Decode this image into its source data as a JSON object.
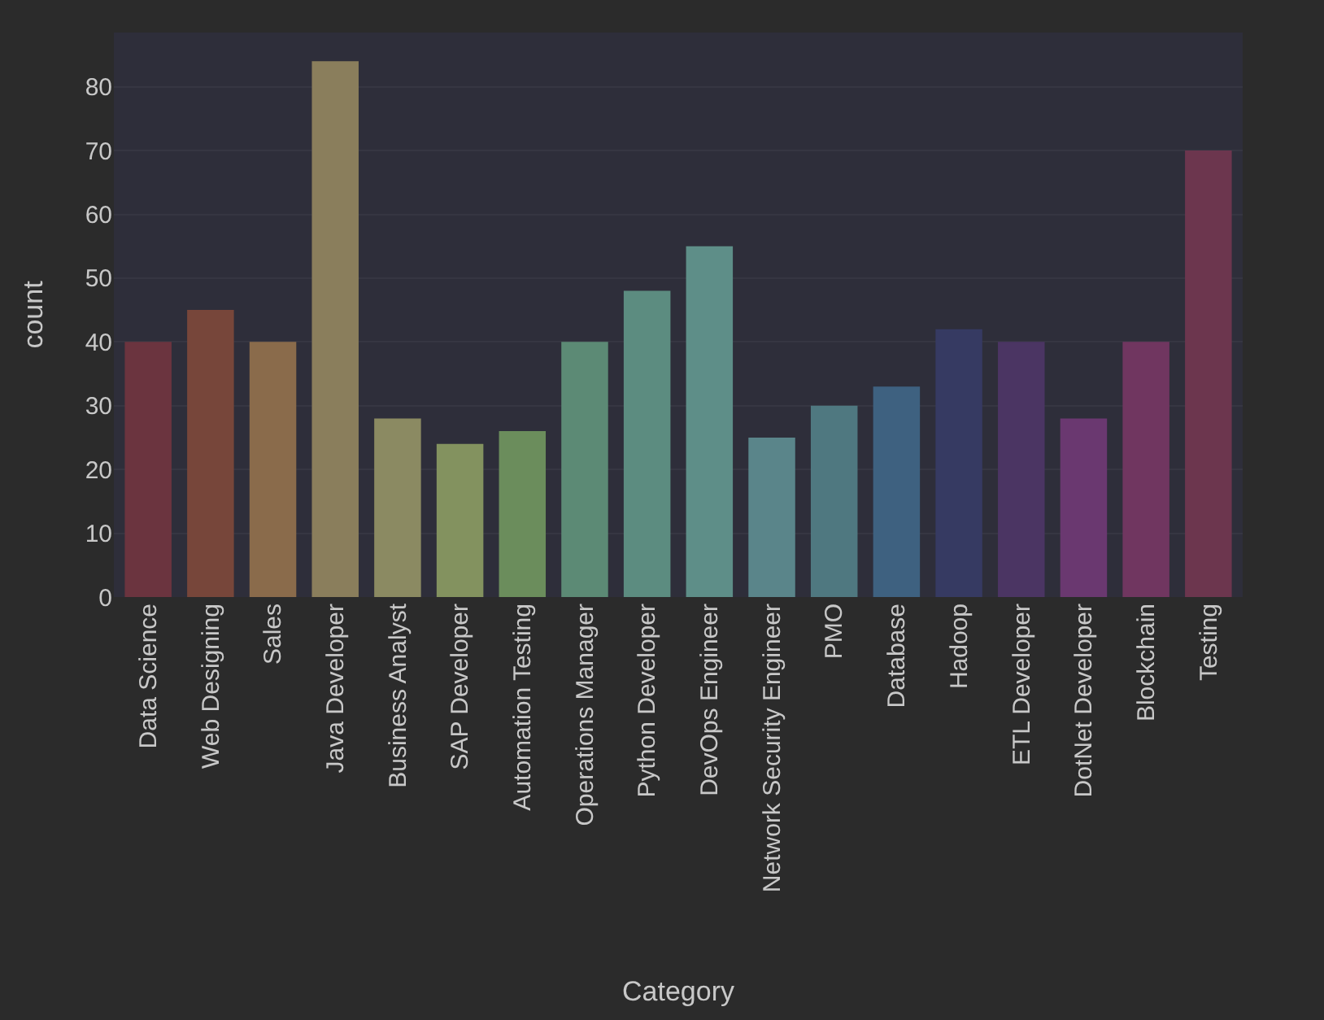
{
  "chart_data": {
    "type": "bar",
    "xlabel": "Category",
    "ylabel": "count",
    "categories": [
      "Data Science",
      "Web Designing",
      "Sales",
      "Java Developer",
      "Business Analyst",
      "SAP Developer",
      "Automation Testing",
      "Operations Manager",
      "Python Developer",
      "DevOps Engineer",
      "Network Security Engineer",
      "PMO",
      "Database",
      "Hadoop",
      "ETL Developer",
      "DotNet Developer",
      "Blockchain",
      "Testing"
    ],
    "values": [
      40,
      45,
      40,
      84,
      28,
      24,
      26,
      40,
      48,
      55,
      25,
      30,
      33,
      42,
      40,
      28,
      40,
      70
    ],
    "colors": [
      "#6b343f",
      "#77463a",
      "#8a6b4b",
      "#8a7e5c",
      "#8b8a62",
      "#83925f",
      "#6b8d5c",
      "#5c8a75",
      "#5c8c80",
      "#5e8e88",
      "#5a858a",
      "#4f7880",
      "#3e6180",
      "#363a62",
      "#4b3563",
      "#6a3870",
      "#703660",
      "#6c364e"
    ],
    "ylim": [
      0,
      88.5
    ],
    "yticks": [
      0,
      10,
      20,
      30,
      40,
      50,
      60,
      70,
      80
    ],
    "grid": "y"
  }
}
